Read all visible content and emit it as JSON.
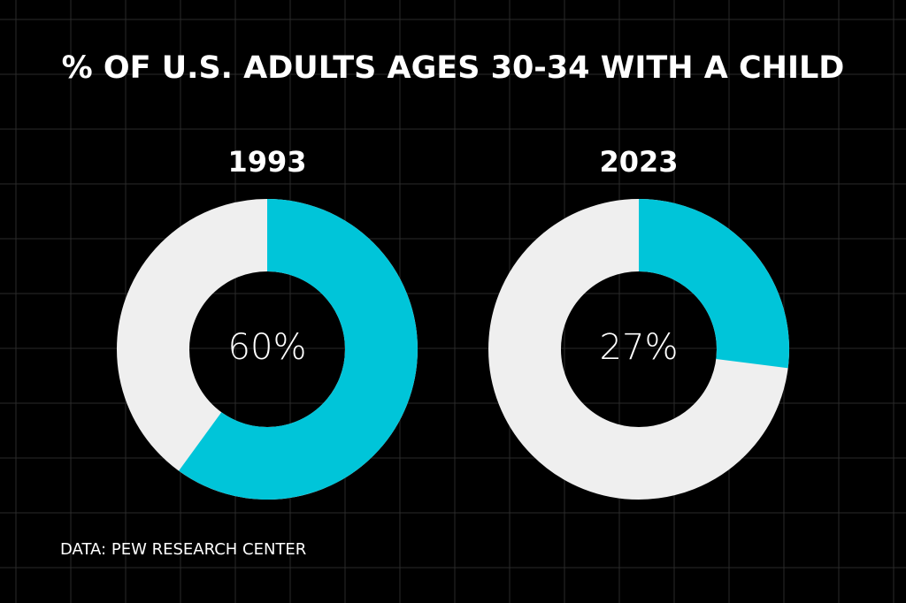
{
  "title": "% OF U.S. ADULTS AGES 30-34 WITH A CHILD",
  "source": "DATA: PEW RESEARCH CENTER",
  "chart_data": [
    {
      "type": "donut",
      "title": "1993",
      "values": [
        60
      ],
      "value_labels": [
        "60%"
      ],
      "total": 100,
      "color": "#00c5d9",
      "track_color": "#efefef"
    },
    {
      "type": "donut",
      "title": "2023",
      "values": [
        27
      ],
      "value_labels": [
        "27%"
      ],
      "total": 100,
      "color": "#00c5d9",
      "track_color": "#efefef"
    }
  ]
}
